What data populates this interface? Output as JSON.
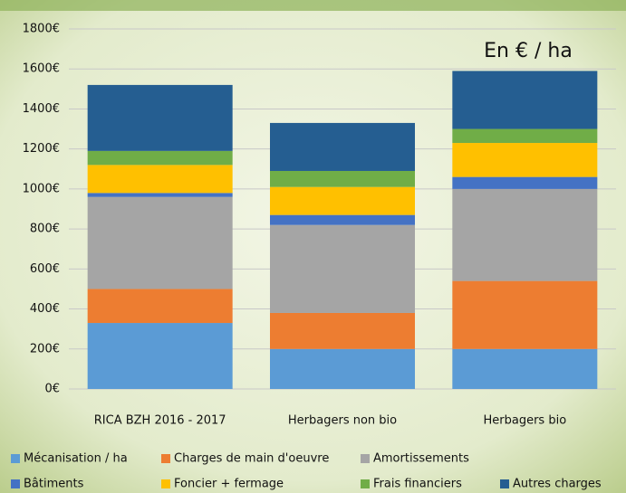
{
  "chart_data": {
    "type": "stacked_bar",
    "annotation": "En € / ha",
    "categories": [
      "RICA BZH 2016 - 2017",
      "Herbagers non bio",
      "Herbagers bio"
    ],
    "series": [
      {
        "name": "Mécanisation / ha",
        "color": "#5b9bd5",
        "values": [
          330,
          200,
          200
        ]
      },
      {
        "name": "Charges de main d'oeuvre",
        "color": "#ed7d31",
        "values": [
          170,
          180,
          340
        ]
      },
      {
        "name": "Amortissements",
        "color": "#a5a5a5",
        "values": [
          460,
          440,
          460
        ]
      },
      {
        "name": "Bâtiments",
        "color": "#4472c4",
        "values": [
          20,
          50,
          60
        ]
      },
      {
        "name": "Foncier + fermage",
        "color": "#ffc000",
        "values": [
          140,
          140,
          170
        ]
      },
      {
        "name": "Frais financiers",
        "color": "#70ad47",
        "values": [
          70,
          80,
          70
        ]
      },
      {
        "name": "Autres charges",
        "color": "#255e91",
        "values": [
          330,
          240,
          290
        ]
      }
    ],
    "ylim": [
      0,
      1800
    ],
    "yticks": [
      {
        "value": 0,
        "label": "0€"
      },
      {
        "value": 200,
        "label": "200€"
      },
      {
        "value": 400,
        "label": "400€"
      },
      {
        "value": 600,
        "label": "600€"
      },
      {
        "value": 800,
        "label": "800€"
      },
      {
        "value": 1000,
        "label": "1000€"
      },
      {
        "value": 1200,
        "label": "1200€"
      },
      {
        "value": 1400,
        "label": "1400€"
      },
      {
        "value": 1600,
        "label": "1600€"
      },
      {
        "value": 1800,
        "label": "1800€"
      }
    ],
    "grid": true
  }
}
